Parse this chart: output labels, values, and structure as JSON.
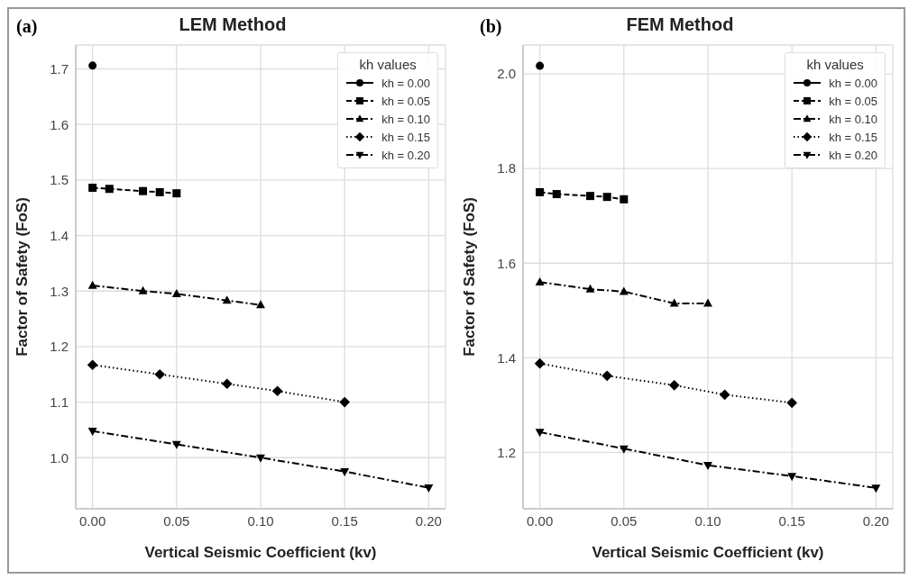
{
  "chart_data": [
    {
      "type": "line",
      "title": "LEM Method",
      "xlabel": "Vertical Seismic Coefficient (kv)",
      "ylabel": "Factor of Safety (FoS)",
      "legend_title": "kh values",
      "annotations": [
        "(a)"
      ],
      "xlim": [
        -0.01,
        0.21
      ],
      "xticks": [
        {
          "value": 0,
          "label": "0.00"
        },
        {
          "value": 0.05,
          "label": "0.05"
        },
        {
          "value": 0.1,
          "label": "0.10"
        },
        {
          "value": 0.15,
          "label": "0.15"
        },
        {
          "value": 0.2,
          "label": "0.20"
        }
      ],
      "ylim": [
        0.908,
        1.743
      ],
      "yticks": [
        {
          "value": 1.0,
          "label": "1.0"
        },
        1.1,
        1.2,
        1.3,
        1.4,
        1.5,
        1.6,
        1.7
      ],
      "grid": true,
      "legend": "top right",
      "series": [
        {
          "name": "kh = 0.00",
          "color": "#000000",
          "marker": "circle",
          "line_style": "solid",
          "x": [
            0
          ],
          "values": [
            1.706
          ]
        },
        {
          "name": "kh = 0.05",
          "color": "#000000",
          "marker": "square",
          "line_style": "dashed",
          "x": [
            0,
            0.01,
            0.03,
            0.04,
            0.05
          ],
          "values": [
            1.486,
            1.484,
            1.48,
            1.478,
            1.476
          ]
        },
        {
          "name": "kh = 0.10",
          "color": "#000000",
          "marker": "triangle",
          "line_style": "dashdot",
          "x": [
            0,
            0.03,
            0.05,
            0.08,
            0.1
          ],
          "values": [
            1.31,
            1.3,
            1.295,
            1.283,
            1.275
          ]
        },
        {
          "name": "kh = 0.15",
          "color": "#000000",
          "marker": "diamond",
          "line_style": "dotted",
          "x": [
            0,
            0.04,
            0.08,
            0.11,
            0.15
          ],
          "values": [
            1.167,
            1.15,
            1.133,
            1.12,
            1.1
          ]
        },
        {
          "name": "kh = 0.20",
          "color": "#000000",
          "marker": "triangle_down",
          "line_style": "dashdot",
          "x": [
            0,
            0.05,
            0.1,
            0.15,
            0.2
          ],
          "values": [
            1.048,
            1.024,
            1.0,
            0.975,
            0.946
          ]
        }
      ]
    },
    {
      "type": "line",
      "title": "FEM Method",
      "xlabel": "Vertical Seismic Coefficient (kv)",
      "ylabel": "Factor of Safety (FoS)",
      "legend_title": "kh values",
      "annotations": [
        "(b)"
      ],
      "xlim": [
        -0.01,
        0.21
      ],
      "xticks": [
        {
          "value": 0,
          "label": "0.00"
        },
        {
          "value": 0.05,
          "label": "0.05"
        },
        {
          "value": 0.1,
          "label": "0.10"
        },
        {
          "value": 0.15,
          "label": "0.15"
        },
        {
          "value": 0.2,
          "label": "0.20"
        }
      ],
      "ylim": [
        1.081,
        2.061
      ],
      "yticks": [
        1.2,
        1.4,
        1.6,
        1.8,
        {
          "value": 2.0,
          "label": "2.0"
        }
      ],
      "grid": true,
      "legend": "top right",
      "series": [
        {
          "name": "kh = 0.00",
          "color": "#000000",
          "marker": "circle",
          "line_style": "solid",
          "x": [
            0
          ],
          "values": [
            2.017
          ]
        },
        {
          "name": "kh = 0.05",
          "color": "#000000",
          "marker": "square",
          "line_style": "dashed",
          "x": [
            0,
            0.01,
            0.03,
            0.04,
            0.05
          ],
          "values": [
            1.75,
            1.746,
            1.742,
            1.74,
            1.735
          ]
        },
        {
          "name": "kh = 0.10",
          "color": "#000000",
          "marker": "triangle",
          "line_style": "dashdot",
          "x": [
            0,
            0.03,
            0.05,
            0.08,
            0.1
          ],
          "values": [
            1.56,
            1.545,
            1.54,
            1.515,
            1.515
          ]
        },
        {
          "name": "kh = 0.15",
          "color": "#000000",
          "marker": "diamond",
          "line_style": "dotted",
          "x": [
            0,
            0.04,
            0.08,
            0.11,
            0.15
          ],
          "values": [
            1.388,
            1.362,
            1.342,
            1.322,
            1.305
          ]
        },
        {
          "name": "kh = 0.20",
          "color": "#000000",
          "marker": "triangle_down",
          "line_style": "dashdot",
          "x": [
            0,
            0.05,
            0.1,
            0.15,
            0.2
          ],
          "values": [
            1.243,
            1.208,
            1.173,
            1.15,
            1.125
          ]
        }
      ]
    }
  ]
}
